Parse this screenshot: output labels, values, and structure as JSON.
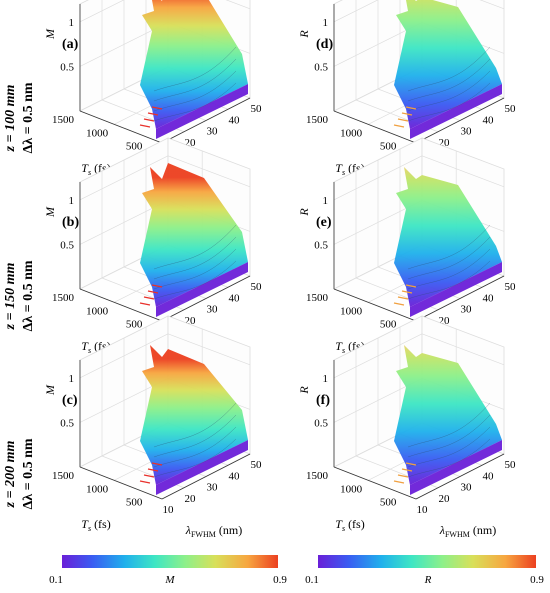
{
  "row_labels": [
    {
      "z": "z = 100 mm",
      "dl": "Δλ = 0.5 nm"
    },
    {
      "z": "z = 150 mm",
      "dl": "Δλ = 0.5 nm"
    },
    {
      "z": "z = 200 mm",
      "dl": "Δλ = 0.5 nm"
    }
  ],
  "colors": {
    "scale": [
      "#6a1fd8",
      "#3a5cf2",
      "#20b0ec",
      "#3ee6c4",
      "#8df08a",
      "#d8e05a",
      "#f7a640",
      "#ec4020"
    ],
    "grid": "#dddddd",
    "axis": "#333333"
  },
  "colorbars": [
    {
      "label": "M",
      "min": "0.1",
      "max": "0.9"
    },
    {
      "label": "R",
      "min": "0.1",
      "max": "0.9"
    }
  ],
  "chart_data": [
    {
      "type": "surface",
      "panel": "(a)",
      "zlabel": "M",
      "xlabel": "λFWHM (nm)",
      "ylabel": "Ts (fs)",
      "x_ticks": [
        "10",
        "20",
        "30",
        "40",
        "50"
      ],
      "y_ticks": [
        "500",
        "1000",
        "1500"
      ],
      "z_ticks": [
        "0.5",
        "1"
      ],
      "xlim": [
        10,
        50
      ],
      "ylim": [
        300,
        1500
      ],
      "zlim": [
        0,
        1.2
      ],
      "clim": [
        0.1,
        0.9
      ]
    },
    {
      "type": "surface",
      "panel": "(d)",
      "zlabel": "R",
      "xlabel": "λFWHM (nm)",
      "ylabel": "Ts (fs)",
      "x_ticks": [
        "10",
        "20",
        "30",
        "40",
        "50"
      ],
      "y_ticks": [
        "500",
        "1000",
        "1500"
      ],
      "z_ticks": [
        "0.5",
        "1"
      ],
      "xlim": [
        10,
        50
      ],
      "ylim": [
        300,
        1500
      ],
      "zlim": [
        0,
        1.2
      ],
      "clim": [
        0.1,
        0.9
      ]
    },
    {
      "type": "surface",
      "panel": "(b)",
      "zlabel": "M",
      "xlabel": "λFWHM (nm)",
      "ylabel": "Ts (fs)",
      "x_ticks": [
        "10",
        "20",
        "30",
        "40",
        "50"
      ],
      "y_ticks": [
        "500",
        "1000",
        "1500"
      ],
      "z_ticks": [
        "0.5",
        "1"
      ],
      "xlim": [
        10,
        50
      ],
      "ylim": [
        300,
        1500
      ],
      "zlim": [
        0,
        1.2
      ],
      "clim": [
        0.1,
        0.9
      ]
    },
    {
      "type": "surface",
      "panel": "(e)",
      "zlabel": "R",
      "xlabel": "λFWHM (nm)",
      "ylabel": "Ts (fs)",
      "x_ticks": [
        "10",
        "20",
        "30",
        "40",
        "50"
      ],
      "y_ticks": [
        "500",
        "1000",
        "1500"
      ],
      "z_ticks": [
        "0.5",
        "1"
      ],
      "xlim": [
        10,
        50
      ],
      "ylim": [
        300,
        1500
      ],
      "zlim": [
        0,
        1.2
      ],
      "clim": [
        0.1,
        0.9
      ]
    },
    {
      "type": "surface",
      "panel": "(c)",
      "zlabel": "M",
      "xlabel": "λFWHM (nm)",
      "ylabel": "Ts (fs)",
      "x_ticks": [
        "10",
        "20",
        "30",
        "40",
        "50"
      ],
      "y_ticks": [
        "500",
        "1000",
        "1500"
      ],
      "z_ticks": [
        "0.5",
        "1"
      ],
      "xlim": [
        10,
        50
      ],
      "ylim": [
        300,
        1500
      ],
      "zlim": [
        0,
        1.2
      ],
      "clim": [
        0.1,
        0.9
      ]
    },
    {
      "type": "surface",
      "panel": "(f)",
      "zlabel": "R",
      "xlabel": "λFWHM (nm)",
      "ylabel": "Ts (fs)",
      "x_ticks": [
        "10",
        "20",
        "30",
        "40",
        "50"
      ],
      "y_ticks": [
        "500",
        "1000",
        "1500"
      ],
      "z_ticks": [
        "0.5",
        "1"
      ],
      "xlim": [
        10,
        50
      ],
      "ylim": [
        300,
        1500
      ],
      "zlim": [
        0,
        1.2
      ],
      "clim": [
        0.1,
        0.9
      ]
    }
  ]
}
